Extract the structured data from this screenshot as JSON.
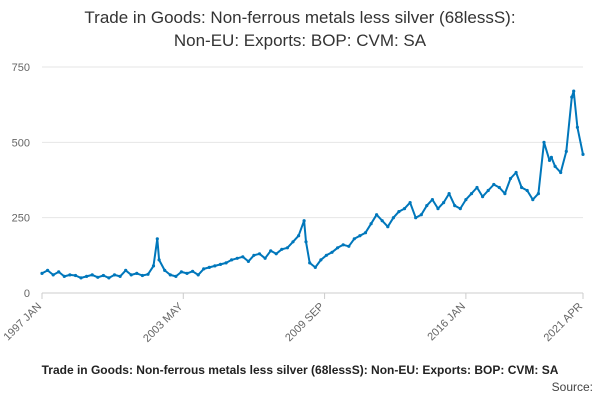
{
  "title_line1": "Trade in Goods: Non-ferrous metals less silver (68lessS):",
  "title_line2": "Non-EU: Exports: BOP: CVM: SA",
  "footer_description": "Trade in Goods: Non-ferrous metals less silver (68lessS): Non-EU: Exports: BOP: CVM: SA",
  "footer_source": "Source:",
  "colors": {
    "series": "#0077bb",
    "grid": "#e6e6e6",
    "axis": "#cccccc"
  },
  "chart_data": {
    "type": "line",
    "title": "Trade in Goods: Non-ferrous metals less silver (68lessS): Non-EU: Exports: BOP: CVM: SA",
    "xlabel": "",
    "ylabel": "",
    "ylim": [
      0,
      750
    ],
    "yticks": [
      0,
      250,
      500,
      750
    ],
    "xlim": [
      "1997 JAN",
      "2021 APR"
    ],
    "xtick_labels": [
      "1997 JAN",
      "2003 MAY",
      "2009 SEP",
      "2016 JAN",
      "2021 APR"
    ],
    "grid": true,
    "legend": "none",
    "markers": true,
    "x": [
      "1997 JAN",
      "1997 APR",
      "1997 JUL",
      "1997 OCT",
      "1998 JAN",
      "1998 APR",
      "1998 JUL",
      "1998 OCT",
      "1999 JAN",
      "1999 APR",
      "1999 JUL",
      "1999 OCT",
      "2000 JAN",
      "2000 APR",
      "2000 JUL",
      "2000 OCT",
      "2001 JAN",
      "2001 APR",
      "2001 JUL",
      "2001 OCT",
      "2002 JAN",
      "2002 MAR",
      "2002 APR",
      "2002 JUL",
      "2002 OCT",
      "2003 JAN",
      "2003 APR",
      "2003 JUL",
      "2003 OCT",
      "2004 JAN",
      "2004 APR",
      "2004 JUL",
      "2004 OCT",
      "2005 JAN",
      "2005 APR",
      "2005 JUL",
      "2005 OCT",
      "2006 JAN",
      "2006 APR",
      "2006 JUL",
      "2006 OCT",
      "2007 JAN",
      "2007 APR",
      "2007 JUL",
      "2007 OCT",
      "2008 JAN",
      "2008 APR",
      "2008 JUL",
      "2008 OCT",
      "2008 NOV",
      "2009 JAN",
      "2009 APR",
      "2009 JUL",
      "2009 OCT",
      "2010 JAN",
      "2010 APR",
      "2010 JUL",
      "2010 OCT",
      "2011 JAN",
      "2011 APR",
      "2011 JUL",
      "2011 OCT",
      "2012 JAN",
      "2012 APR",
      "2012 JUL",
      "2012 OCT",
      "2013 JAN",
      "2013 APR",
      "2013 JUL",
      "2013 OCT",
      "2014 JAN",
      "2014 APR",
      "2014 JUL",
      "2014 OCT",
      "2015 JAN",
      "2015 APR",
      "2015 JUL",
      "2015 OCT",
      "2016 JAN",
      "2016 APR",
      "2016 JUL",
      "2016 OCT",
      "2017 JAN",
      "2017 APR",
      "2017 JUL",
      "2017 OCT",
      "2018 JAN",
      "2018 APR",
      "2018 JUL",
      "2018 OCT",
      "2019 JAN",
      "2019 APR",
      "2019 JUL",
      "2019 OCT",
      "2019 NOV",
      "2020 JAN",
      "2020 APR",
      "2020 JUL",
      "2020 OCT",
      "2020 NOV",
      "2021 JAN",
      "2021 APR"
    ],
    "series": [
      {
        "values": [
          65,
          75,
          60,
          70,
          55,
          60,
          58,
          50,
          55,
          60,
          52,
          58,
          50,
          60,
          55,
          75,
          60,
          65,
          58,
          62,
          90,
          180,
          110,
          75,
          60,
          55,
          70,
          65,
          72,
          60,
          80,
          85,
          90,
          95,
          100,
          110,
          115,
          120,
          105,
          125,
          130,
          115,
          140,
          130,
          145,
          150,
          170,
          190,
          240,
          170,
          100,
          85,
          110,
          125,
          135,
          150,
          160,
          155,
          180,
          190,
          200,
          230,
          260,
          240,
          220,
          250,
          270,
          280,
          300,
          250,
          260,
          290,
          310,
          280,
          300,
          330,
          290,
          280,
          310,
          330,
          350,
          320,
          340,
          360,
          350,
          330,
          380,
          400,
          350,
          340,
          310,
          330,
          500,
          440,
          450,
          420,
          400,
          470,
          650,
          670,
          550,
          460
        ]
      }
    ]
  }
}
